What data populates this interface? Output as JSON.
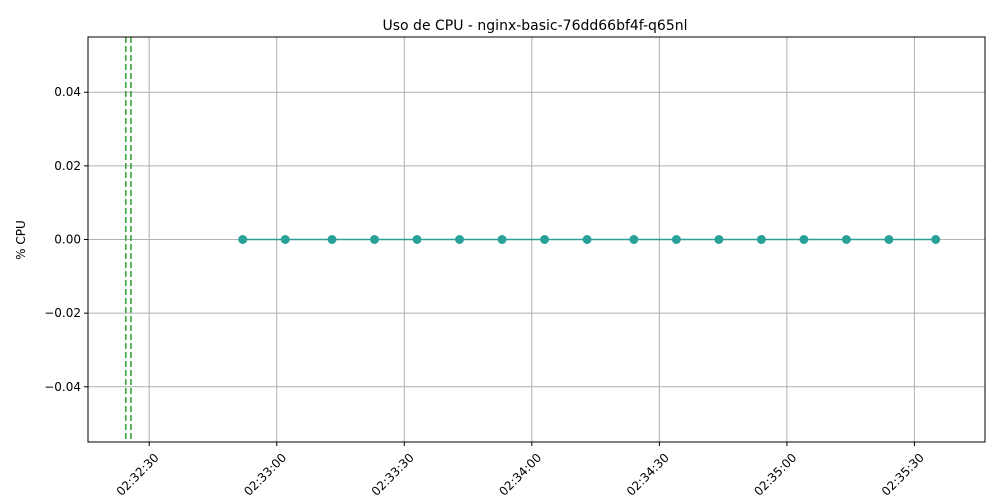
{
  "chart_data": {
    "type": "line",
    "title": "Uso de CPU - nginx-basic-76dd66bf4f-q65nl",
    "xlabel": "",
    "ylabel": "% CPU",
    "xlim": [
      "02:32:15.6",
      "02:35:46.6"
    ],
    "ylim": [
      -0.055,
      0.055
    ],
    "grid": true,
    "colors": {
      "series": "#2aa198",
      "event_lines": "#2ca02c"
    },
    "x_ticks": [
      "02:32:30",
      "02:33:00",
      "02:33:30",
      "02:34:00",
      "02:34:30",
      "02:35:00",
      "02:35:30"
    ],
    "y_ticks": [
      {
        "value": 0.04,
        "label": "0.04"
      },
      {
        "value": 0.02,
        "label": "0.02"
      },
      {
        "value": 0.0,
        "label": "0.00"
      },
      {
        "value": -0.02,
        "label": "−0.02"
      },
      {
        "value": -0.04,
        "label": "−0.04"
      }
    ],
    "event_lines": [
      "02:32:24.5",
      "02:32:25.7"
    ],
    "series": [
      {
        "x": [
          "02:32:52",
          "02:33:02",
          "02:33:13",
          "02:33:23",
          "02:33:33",
          "02:33:43",
          "02:33:53",
          "02:34:03",
          "02:34:13",
          "02:34:24",
          "02:34:34",
          "02:34:44",
          "02:34:54",
          "02:35:04",
          "02:35:14",
          "02:35:24",
          "02:35:35"
        ],
        "values": [
          0,
          0,
          0,
          0,
          0,
          0,
          0,
          0,
          0,
          0,
          0,
          0,
          0,
          0,
          0,
          0,
          0
        ]
      }
    ]
  }
}
